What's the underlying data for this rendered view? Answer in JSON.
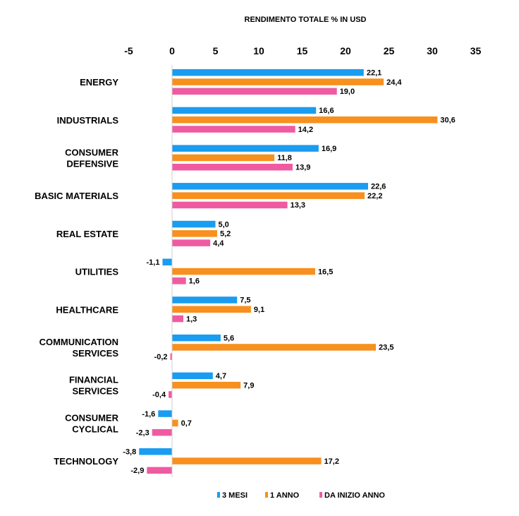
{
  "chart_data": {
    "type": "bar",
    "orientation": "horizontal",
    "title": "RENDIMENTO TOTALE % IN USD",
    "xlim": [
      -5,
      35
    ],
    "x_ticks": [
      "-5",
      "0",
      "5",
      "10",
      "15",
      "20",
      "25",
      "30",
      "35"
    ],
    "grid": false,
    "legend_position": "bottom",
    "categories": [
      [
        "ENERGY"
      ],
      [
        "INDUSTRIALS"
      ],
      [
        "CONSUMER",
        "DEFENSIVE"
      ],
      [
        "BASIC MATERIALS"
      ],
      [
        "REAL ESTATE"
      ],
      [
        "UTILITIES"
      ],
      [
        "HEALTHCARE"
      ],
      [
        "COMMUNICATION",
        "SERVICES"
      ],
      [
        "FINANCIAL",
        "SERVICES"
      ],
      [
        "CONSUMER",
        "CYCLICAL"
      ],
      [
        "TECHNOLOGY"
      ]
    ],
    "series": [
      {
        "name": "3 MESI",
        "color": "#1a9cf0",
        "values": [
          22.1,
          16.6,
          16.9,
          22.6,
          5.0,
          -1.1,
          7.5,
          5.6,
          4.7,
          -1.6,
          -3.8
        ],
        "labels": [
          "22,1",
          "16,6",
          "16,9",
          "22,6",
          "5,0",
          "-1,1",
          "7,5",
          "5,6",
          "4,7",
          "-1,6",
          "-3,8"
        ]
      },
      {
        "name": "1 ANNO",
        "color": "#f7901e",
        "values": [
          24.4,
          30.6,
          11.8,
          22.2,
          5.2,
          16.5,
          9.1,
          23.5,
          7.9,
          0.7,
          17.2
        ],
        "labels": [
          "24,4",
          "30,6",
          "11,8",
          "22,2",
          "5,2",
          "16,5",
          "9,1",
          "23,5",
          "7,9",
          "0,7",
          "17,2"
        ]
      },
      {
        "name": "DA INIZIO ANNO",
        "color": "#ef5ba1",
        "values": [
          19.0,
          14.2,
          13.9,
          13.3,
          4.4,
          1.6,
          1.3,
          -0.2,
          -0.4,
          -2.3,
          -2.9
        ],
        "labels": [
          "19,0",
          "14,2",
          "13,9",
          "13,3",
          "4,4",
          "1,6",
          "1,3",
          "-0,2",
          "-0,4",
          "-2,3",
          "-2,9"
        ]
      }
    ]
  }
}
